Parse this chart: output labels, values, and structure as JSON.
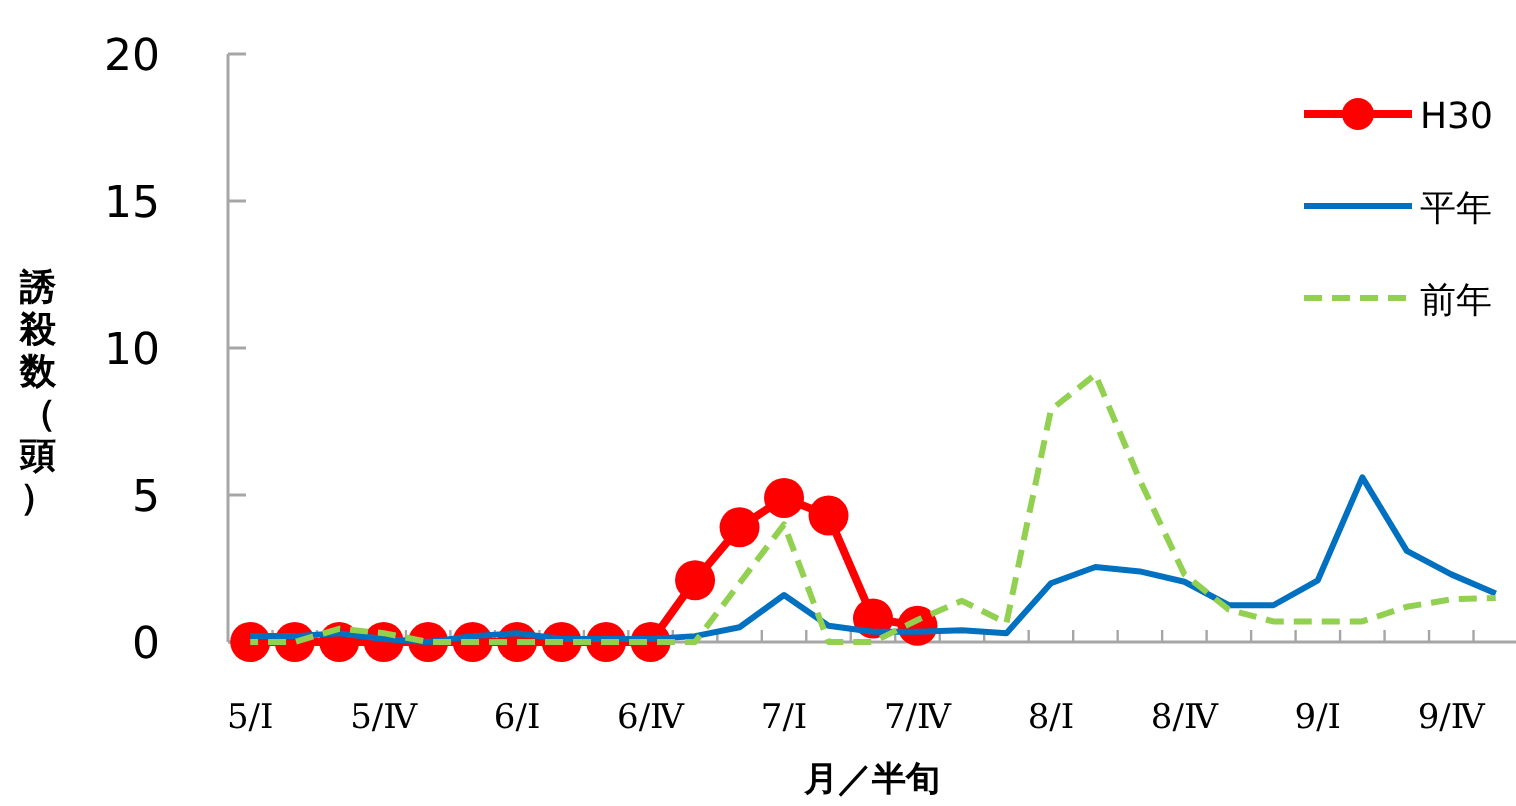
{
  "chart_data": {
    "type": "line",
    "xlabel": "月／半旬",
    "ylabel": "誘殺数（頭）",
    "categories": [
      "5/Ⅰ",
      null,
      null,
      "5/Ⅳ",
      null,
      null,
      "6/Ⅰ",
      null,
      null,
      "6/Ⅳ",
      null,
      null,
      "7/Ⅰ",
      null,
      null,
      "7/Ⅳ",
      null,
      null,
      "8/Ⅰ",
      null,
      null,
      "8/Ⅳ",
      null,
      null,
      "9/Ⅰ",
      null,
      null,
      "9/Ⅳ",
      null
    ],
    "series": [
      {
        "name": "H30",
        "color": "#ff0000",
        "marker": "circle",
        "line_style": "solid",
        "values": [
          0,
          0,
          0,
          0,
          0,
          0,
          0,
          0,
          0,
          0,
          2.1,
          3.9,
          4.9,
          4.3,
          0.8,
          0.55,
          null,
          null,
          null,
          null,
          null,
          null,
          null,
          null,
          null,
          null,
          null,
          null,
          null
        ]
      },
      {
        "name": "平年",
        "color": "#0070c0",
        "marker": "none",
        "line_style": "solid",
        "values": [
          0.2,
          0.2,
          0.3,
          0.1,
          0,
          0.2,
          0.3,
          0.1,
          0.1,
          0.1,
          0.2,
          0.5,
          1.6,
          0.55,
          0.35,
          0.35,
          0.4,
          0.3,
          2.0,
          2.55,
          2.4,
          2.05,
          1.25,
          1.25,
          2.1,
          5.6,
          3.1,
          2.3,
          1.65
        ]
      },
      {
        "name": "前年",
        "color": "#92d050",
        "marker": "none",
        "line_style": "dashed",
        "values": [
          0,
          0,
          0.45,
          0.3,
          0,
          0,
          0,
          0,
          0,
          0,
          0,
          2.0,
          4.0,
          0,
          0,
          0.75,
          1.4,
          0.65,
          7.9,
          9.1,
          5.5,
          2.3,
          1.1,
          0.7,
          0.7,
          0.7,
          1.2,
          1.45,
          1.5
        ]
      }
    ],
    "ylim": [
      0,
      20
    ],
    "yticks": [
      0,
      5,
      10,
      15,
      20
    ],
    "legend": "top right"
  }
}
